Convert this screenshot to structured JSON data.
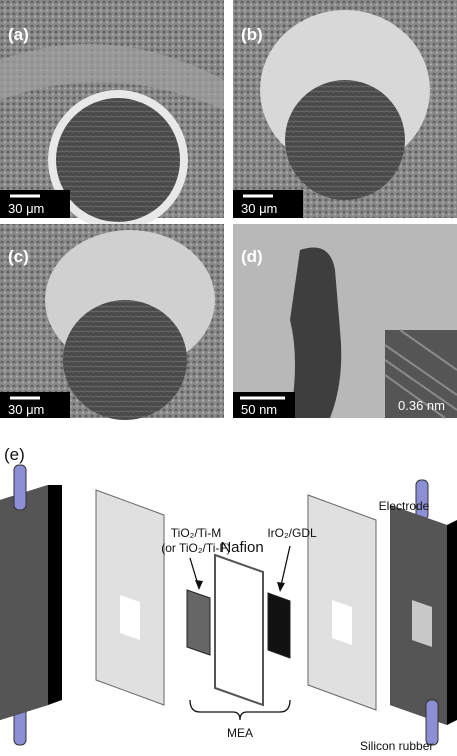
{
  "panels": [
    {
      "label": "(a)",
      "scale_bar": "30 μm"
    },
    {
      "label": "(b)",
      "scale_bar": "30 μm"
    },
    {
      "label": "(c)",
      "scale_bar": "30 μm"
    },
    {
      "label": "(d)",
      "scale_bar": "50 nm",
      "inset_label": "0.36 nm"
    }
  ],
  "diagram": {
    "label": "(e)",
    "tio2_label": "TiO₂/Ti-M",
    "tio2_alt": "(or TiO₂/Ti-F)",
    "iro2_label": "IrO₂/GDL",
    "nafion": "Nafion",
    "electrode": "Electrode",
    "mea": "MEA",
    "silicon_rubber": "Silicon rubber"
  }
}
